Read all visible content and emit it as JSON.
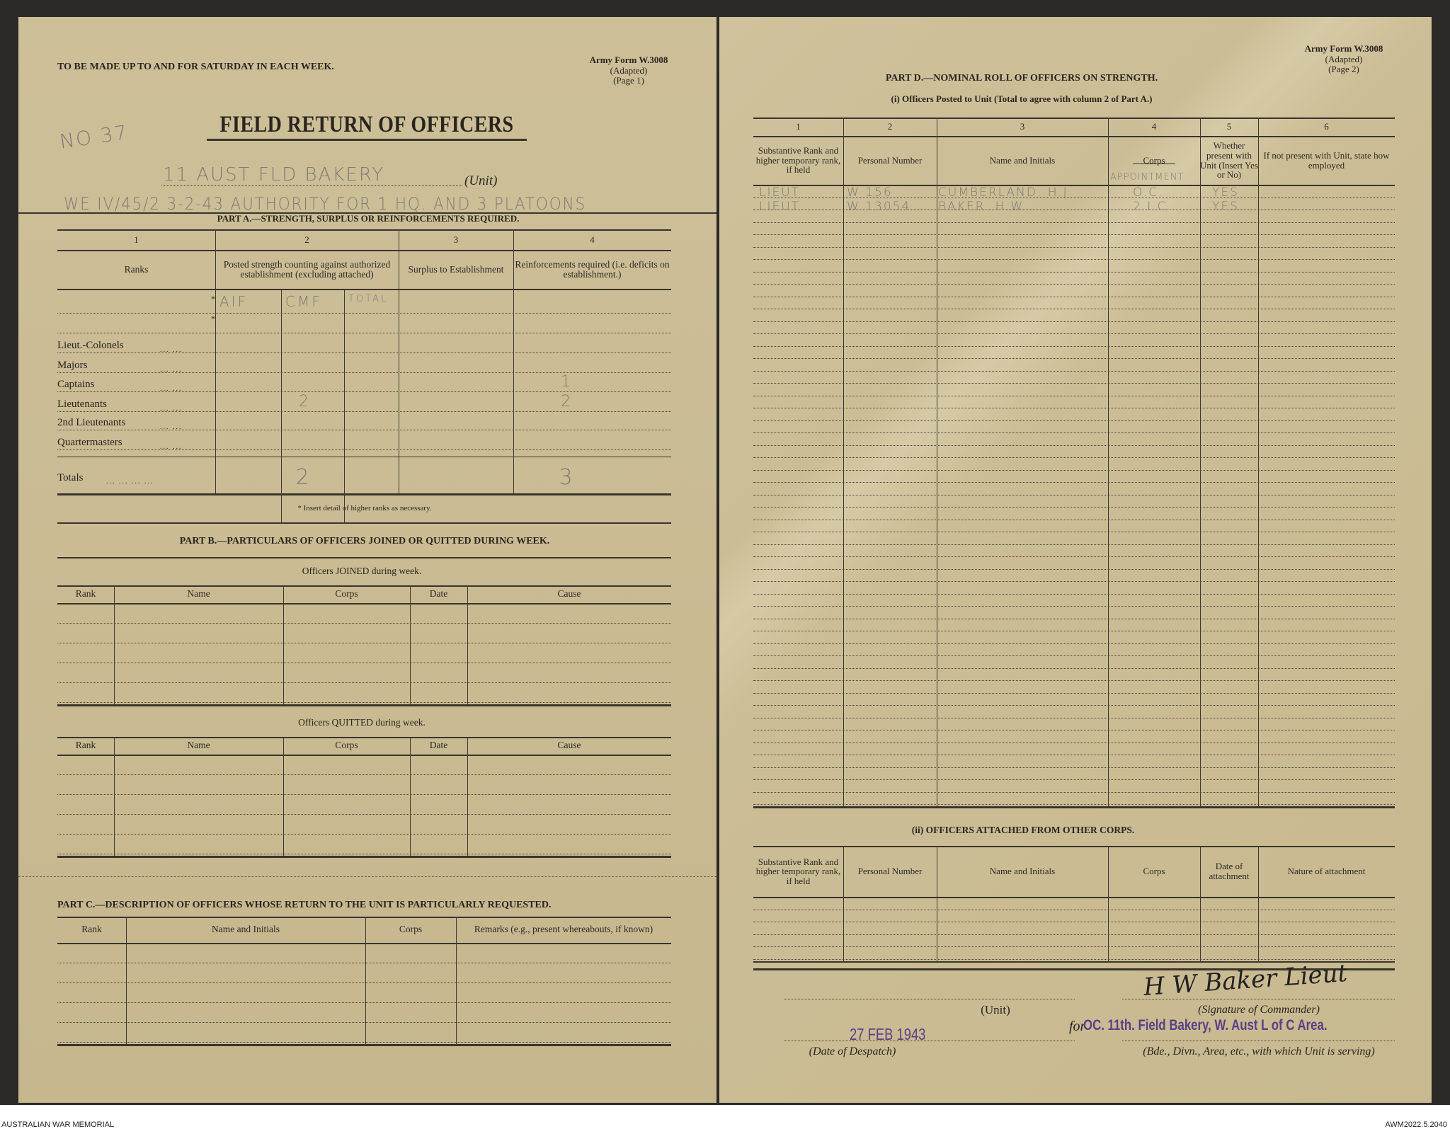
{
  "page1": {
    "instruction": "TO BE MADE UP TO AND FOR SATURDAY IN EACH WEEK.",
    "form_id": "Army Form W.3008",
    "form_adapted": "(Adapted)",
    "form_page": "(Page 1)",
    "handwritten_number": "NO 37",
    "title": "FIELD RETURN OF OFFICERS",
    "unit_value": "11 AUST FLD BAKERY",
    "unit_label": "(Unit)",
    "authority_note": "WE IV/45/2   3-2-43   AUTHORITY FOR 1 HQ. AND 3 PLATOONS",
    "part_a": {
      "title": "PART A.—STRENGTH, SURPLUS OR REINFORCEMENTS REQUIRED.",
      "col_numbers": [
        "1",
        "2",
        "3",
        "4"
      ],
      "col_headers": [
        "Ranks",
        "Posted strength counting against authorized establishment (excluding attached)",
        "Surplus to Establishment",
        "Reinforcements required (i.e. deficits on establishment.)"
      ],
      "sub_headers": [
        "AIF",
        "CMF",
        "TOTAL"
      ],
      "ranks": [
        {
          "rank": "Lieut.-Colonels",
          "aif": "",
          "reinf": ""
        },
        {
          "rank": "Majors",
          "aif": "",
          "reinf": ""
        },
        {
          "rank": "Captains",
          "aif": "",
          "reinf": "1"
        },
        {
          "rank": "Lieutenants",
          "aif": "2",
          "reinf": "2"
        },
        {
          "rank": "2nd Lieutenants",
          "aif": "",
          "reinf": ""
        },
        {
          "rank": "Quartermasters",
          "aif": "",
          "reinf": ""
        }
      ],
      "totals_label": "Totals",
      "totals_aif": "2",
      "totals_reinf": "3",
      "footnote": "* Insert detail of higher ranks as necessary."
    },
    "part_b": {
      "title": "PART B.—PARTICULARS OF OFFICERS JOINED OR QUITTED DURING WEEK.",
      "joined_title": "Officers JOINED during week.",
      "quitted_title": "Officers QUITTED during week.",
      "columns": [
        "Rank",
        "Name",
        "Corps",
        "Date",
        "Cause"
      ]
    },
    "part_c": {
      "title": "PART C.—DESCRIPTION OF OFFICERS WHOSE RETURN TO THE UNIT IS PARTICULARLY REQUESTED.",
      "columns": [
        "Rank",
        "Name and Initials",
        "Corps",
        "Remarks (e.g., present whereabouts, if known)"
      ]
    }
  },
  "page2": {
    "form_id": "Army Form W.3008",
    "form_adapted": "(Adapted)",
    "form_page": "(Page 2)",
    "part_d": {
      "title": "PART D.—NOMINAL ROLL OF OFFICERS ON STRENGTH.",
      "subtitle": "(i) Officers Posted to Unit (Total to agree with column 2 of Part A.)",
      "col_numbers": [
        "1",
        "2",
        "3",
        "4",
        "5",
        "6"
      ],
      "columns": [
        "Substantive Rank and higher temporary rank, if held",
        "Personal Number",
        "Name and Initials",
        "Corps",
        "Whether present with Unit (Insert Yes or No)",
        "If not present with Unit, state how employed"
      ],
      "corps_correction": "APPOINTMENT",
      "rows": [
        [
          "LIEUT",
          "W 156",
          "CUMBERLAND. H.J",
          "O.C.",
          "YES",
          ""
        ],
        [
          "LIEUT",
          "W 13054",
          "BAKER. H.W",
          "2 I.C.",
          "YES",
          ""
        ]
      ]
    },
    "attached": {
      "title": "(ii) OFFICERS ATTACHED FROM OTHER CORPS.",
      "columns": [
        "Substantive Rank and higher temporary rank, if held",
        "Personal Number",
        "Name and Initials",
        "Corps",
        "Date of attachment",
        "Nature of attachment"
      ]
    },
    "signature": {
      "signature_text": "H W Baker Lieut",
      "signature_label": "(Signature of Commander)",
      "unit_label": "(Unit)",
      "for_mark": "for",
      "date_stamp": "27 FEB 1943",
      "date_label": "(Date of Despatch)",
      "formation_stamp": "OC. 11th. Field Bakery, W. Aust L of C Area.",
      "formation_label": "(Bde., Divn., Area, etc., with which Unit is serving)"
    }
  },
  "caption": {
    "left": "AUSTRALIAN WAR MEMORIAL",
    "right": "AWM2022.5.2040"
  },
  "colors": {
    "paper": "#cbbd95",
    "ink": "#2a261e",
    "pencil": "#7f7a72",
    "stamp": "#5a3f86",
    "background": "#2b2a27"
  }
}
